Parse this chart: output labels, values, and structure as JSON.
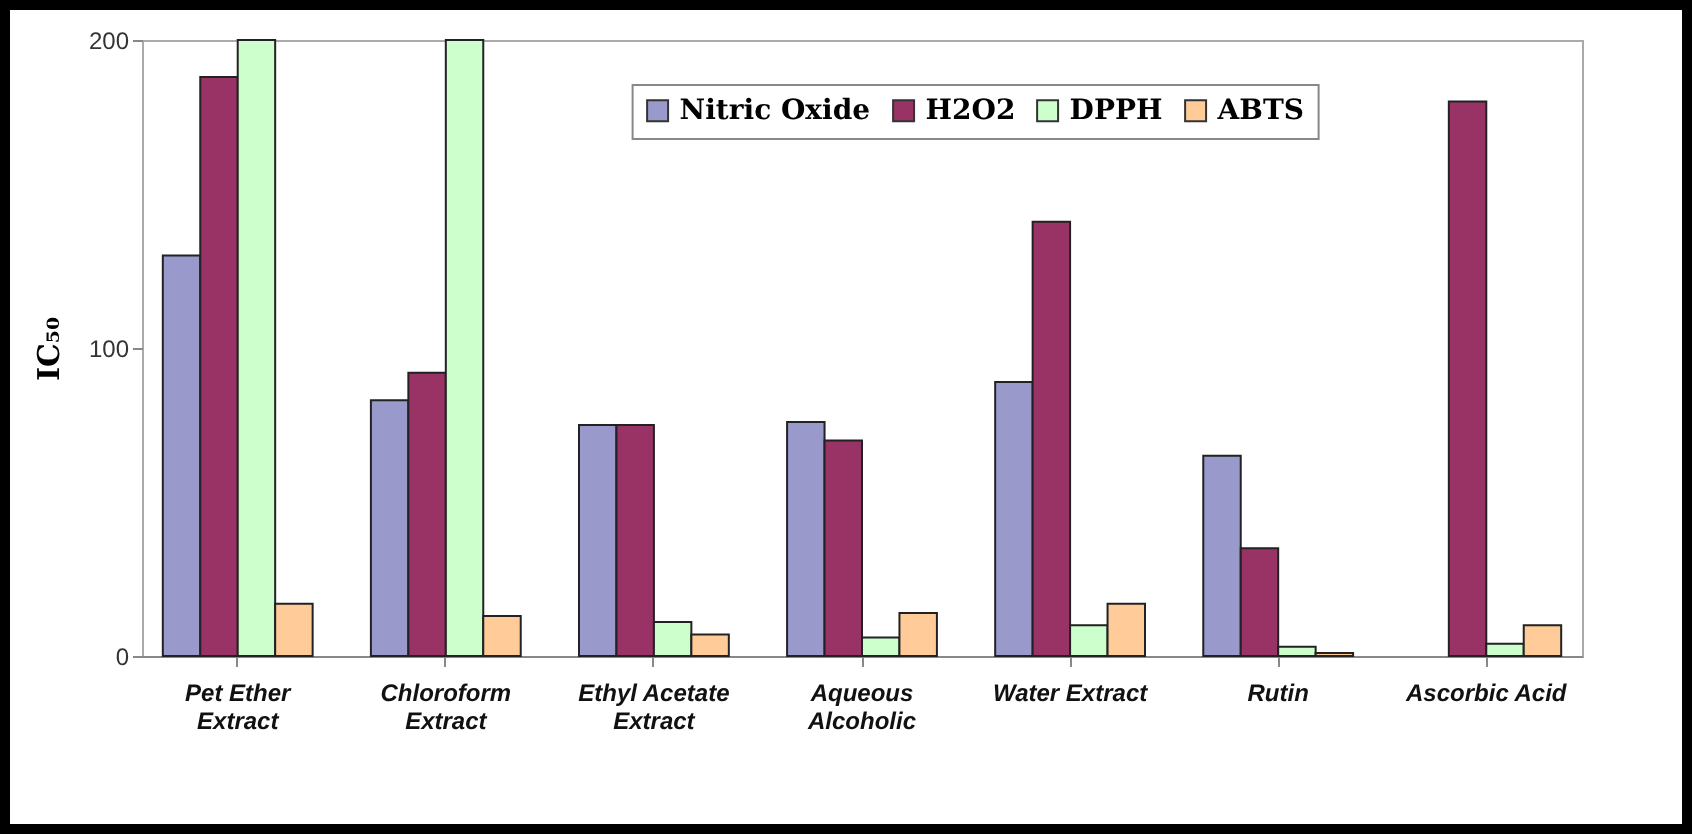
{
  "chart_data": {
    "type": "bar",
    "ylabel": "IC₅₀",
    "categories": [
      "Pet Ether Extract",
      "Chloroform Extract",
      "Ethyl Acetate Extract",
      "Aqueous Alcoholic",
      "Water Extract",
      "Rutin",
      "Ascorbic Acid"
    ],
    "series": [
      {
        "name": "Nitric Oxide",
        "color": "#9999cc",
        "values": [
          130,
          83,
          75,
          76,
          89,
          65,
          null
        ]
      },
      {
        "name": "H2O2",
        "color": "#993366",
        "values": [
          188,
          92,
          75,
          70,
          141,
          35,
          180
        ]
      },
      {
        "name": "DPPH",
        "color": "#ccffcc",
        "values": [
          200,
          200,
          11,
          6,
          10,
          3,
          4
        ]
      },
      {
        "name": "ABTS",
        "color": "#ffcc99",
        "values": [
          17,
          13,
          7,
          14,
          17,
          1,
          10
        ]
      }
    ],
    "ylim": [
      0,
      200
    ],
    "yticks": [
      0,
      100,
      200
    ],
    "legend": "top",
    "grid": false
  }
}
